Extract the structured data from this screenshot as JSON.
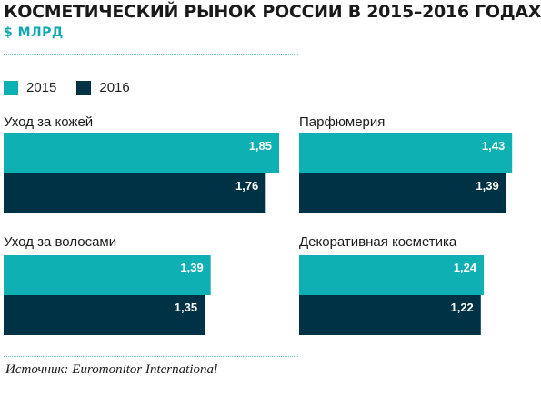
{
  "title": "КОСМЕТИЧЕСКИЙ РЫНОК РОССИИ В 2015–2016 ГОДАХ",
  "subtitle": "$ МЛРД",
  "source": "Источник: Euromonitor International",
  "colors": {
    "y2015": "#0fb0b4",
    "y2016": "#003246",
    "label_text": "#ffffff"
  },
  "chart_data": {
    "type": "bar",
    "orientation": "horizontal",
    "title": "КОСМЕТИЧЕСКИЙ РЫНОК РОССИИ В 2015–2016 ГОДАХ",
    "subtitle": "$ МЛРД",
    "legend": [
      "2015",
      "2016"
    ],
    "legend_position": "top-left",
    "grid": false,
    "xlim": [
      0,
      1.85
    ],
    "panels": [
      {
        "category": "Уход за кожей",
        "values": [
          1.85,
          1.76
        ],
        "labels": [
          "1,85",
          "1,76"
        ]
      },
      {
        "category": "Парфюмерия",
        "values": [
          1.43,
          1.39
        ],
        "labels": [
          "1,43",
          "1,39"
        ]
      },
      {
        "category": "Уход за волосами",
        "values": [
          1.39,
          1.35
        ],
        "labels": [
          "1,39",
          "1,35"
        ]
      },
      {
        "category": "Декоративная косметика",
        "values": [
          1.24,
          1.22
        ],
        "labels": [
          "1,24",
          "1,22"
        ]
      }
    ]
  }
}
